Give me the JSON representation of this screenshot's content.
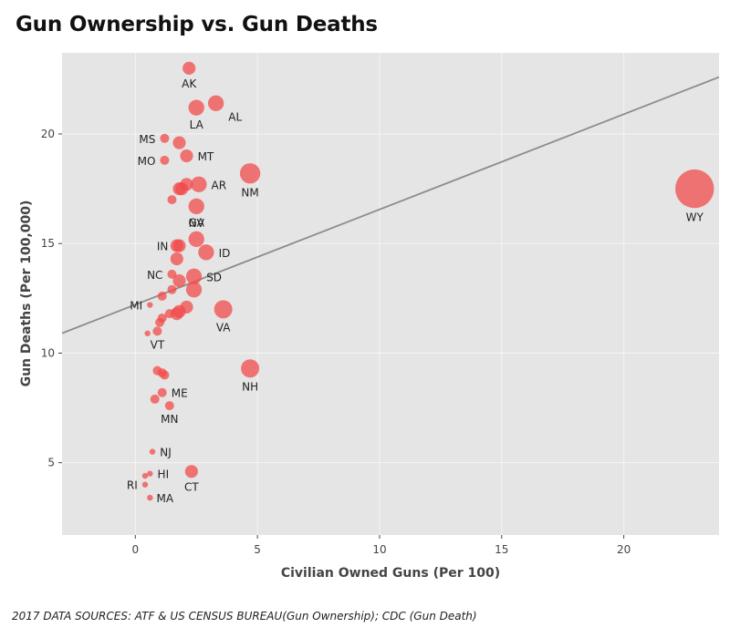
{
  "title": "Gun Ownership vs. Gun Deaths",
  "source": "2017 DATA SOURCES: ATF & US CENSUS BUREAU(Gun Ownership); CDC (Gun Death)",
  "colors": {
    "panel": "#e5e5e5",
    "grid": "#f5f5f5",
    "point": "#f24b4b",
    "trend": "#8c8c8c"
  },
  "chart_data": {
    "type": "scatter",
    "xlabel": "Civilian Owned Guns (Per 100)",
    "ylabel": "Gun Deaths (Per 100,000)",
    "xlim": [
      -3,
      23.9
    ],
    "ylim": [
      1.7,
      23.7
    ],
    "xticks": [
      0,
      5,
      10,
      15,
      20
    ],
    "yticks": [
      5,
      10,
      15,
      20
    ],
    "grid": true,
    "trend_line": {
      "slope": 0.4345,
      "intercept": 12.21
    },
    "points": [
      {
        "label": "AK",
        "x": 2.2,
        "y": 23.0,
        "size": 2
      },
      {
        "label": "AL",
        "x": 3.3,
        "y": 21.4,
        "size": 3
      },
      {
        "label": "LA",
        "x": 2.5,
        "y": 21.2,
        "size": 3
      },
      {
        "label": "MS",
        "x": 1.2,
        "y": 19.8,
        "size": 1
      },
      {
        "label": "",
        "x": 1.8,
        "y": 19.6,
        "size": 2
      },
      {
        "label": "MT",
        "x": 2.1,
        "y": 19.0,
        "size": 2
      },
      {
        "label": "MO",
        "x": 1.2,
        "y": 18.8,
        "size": 1
      },
      {
        "label": "NM",
        "x": 4.7,
        "y": 18.2,
        "size": 5
      },
      {
        "label": "AR",
        "x": 2.6,
        "y": 17.7,
        "size": 3
      },
      {
        "label": "",
        "x": 2.1,
        "y": 17.7,
        "size": 2
      },
      {
        "label": "",
        "x": 1.9,
        "y": 17.5,
        "size": 2
      },
      {
        "label": "",
        "x": 1.8,
        "y": 17.5,
        "size": 2
      },
      {
        "label": "",
        "x": 1.5,
        "y": 17.0,
        "size": 1
      },
      {
        "label": "NV",
        "x": 2.5,
        "y": 16.7,
        "size": 3
      },
      {
        "label": "WY",
        "x": 22.9,
        "y": 17.5,
        "size": 18
      },
      {
        "label": "GA",
        "x": 2.5,
        "y": 15.2,
        "size": 3
      },
      {
        "label": "IN",
        "x": 1.8,
        "y": 14.9,
        "size": 2
      },
      {
        "label": "",
        "x": 1.7,
        "y": 14.9,
        "size": 2
      },
      {
        "label": "ID",
        "x": 2.9,
        "y": 14.6,
        "size": 3
      },
      {
        "label": "",
        "x": 1.7,
        "y": 14.3,
        "size": 2
      },
      {
        "label": "NC",
        "x": 1.5,
        "y": 13.6,
        "size": 1
      },
      {
        "label": "SD",
        "x": 2.4,
        "y": 13.5,
        "size": 3
      },
      {
        "label": "",
        "x": 1.8,
        "y": 13.3,
        "size": 2
      },
      {
        "label": "",
        "x": 2.4,
        "y": 12.9,
        "size": 3
      },
      {
        "label": "",
        "x": 1.5,
        "y": 12.9,
        "size": 1
      },
      {
        "label": "",
        "x": 1.1,
        "y": 12.6,
        "size": 1
      },
      {
        "label": "VA",
        "x": 3.6,
        "y": 12.0,
        "size": 4
      },
      {
        "label": "",
        "x": 2.1,
        "y": 12.1,
        "size": 2
      },
      {
        "label": "MI",
        "x": 0.6,
        "y": 12.2,
        "size": 0
      },
      {
        "label": "",
        "x": 1.8,
        "y": 11.9,
        "size": 2
      },
      {
        "label": "",
        "x": 1.7,
        "y": 11.8,
        "size": 2
      },
      {
        "label": "",
        "x": 1.4,
        "y": 11.8,
        "size": 1
      },
      {
        "label": "",
        "x": 1.1,
        "y": 11.6,
        "size": 1
      },
      {
        "label": "",
        "x": 1.0,
        "y": 11.4,
        "size": 1
      },
      {
        "label": "VT",
        "x": 0.9,
        "y": 11.0,
        "size": 1
      },
      {
        "label": "",
        "x": 0.5,
        "y": 10.9,
        "size": 0
      },
      {
        "label": "NH",
        "x": 4.7,
        "y": 9.3,
        "size": 4
      },
      {
        "label": "",
        "x": 0.9,
        "y": 9.2,
        "size": 1
      },
      {
        "label": "",
        "x": 1.2,
        "y": 9.0,
        "size": 1
      },
      {
        "label": "",
        "x": 1.1,
        "y": 9.1,
        "size": 1
      },
      {
        "label": "ME",
        "x": 1.1,
        "y": 8.2,
        "size": 1
      },
      {
        "label": "",
        "x": 0.8,
        "y": 7.9,
        "size": 1
      },
      {
        "label": "MN",
        "x": 1.4,
        "y": 7.6,
        "size": 1
      },
      {
        "label": "NJ",
        "x": 0.7,
        "y": 5.5,
        "size": 0
      },
      {
        "label": "CT",
        "x": 2.3,
        "y": 4.6,
        "size": 2
      },
      {
        "label": "HI",
        "x": 0.6,
        "y": 4.5,
        "size": 0
      },
      {
        "label": "",
        "x": 0.4,
        "y": 4.4,
        "size": 0
      },
      {
        "label": "RI",
        "x": 0.4,
        "y": 4.0,
        "size": 0
      },
      {
        "label": "MA",
        "x": 0.6,
        "y": 3.4,
        "size": 0
      }
    ]
  }
}
